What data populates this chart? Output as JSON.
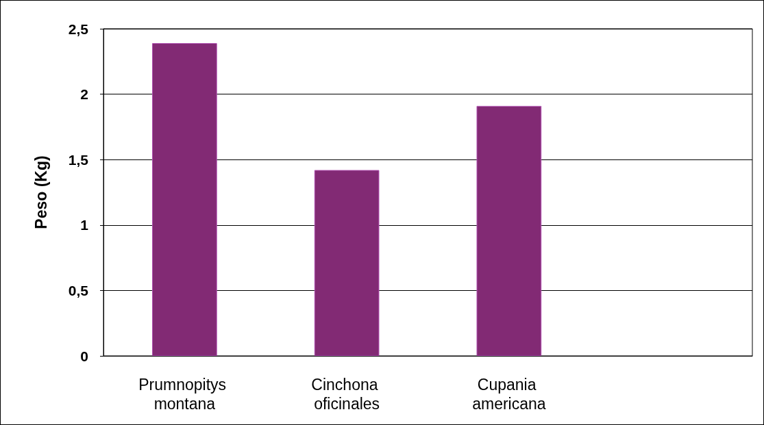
{
  "chart_data": {
    "type": "bar",
    "ylabel": "Peso (Kg)",
    "categories": [
      "Prumnopitys montana",
      "Cinchona oficinales",
      "Cupania americana",
      null
    ],
    "values": [
      2.39,
      1.42,
      1.91,
      null
    ],
    "color": "#822a74",
    "ylim": [
      0,
      2.5
    ],
    "yticks": [
      0,
      {
        "value": 0.5,
        "label": "0,5"
      },
      1,
      {
        "value": 1.5,
        "label": "1,5"
      },
      2,
      {
        "value": 2.5,
        "label": "2,5"
      }
    ],
    "grid": "y"
  }
}
